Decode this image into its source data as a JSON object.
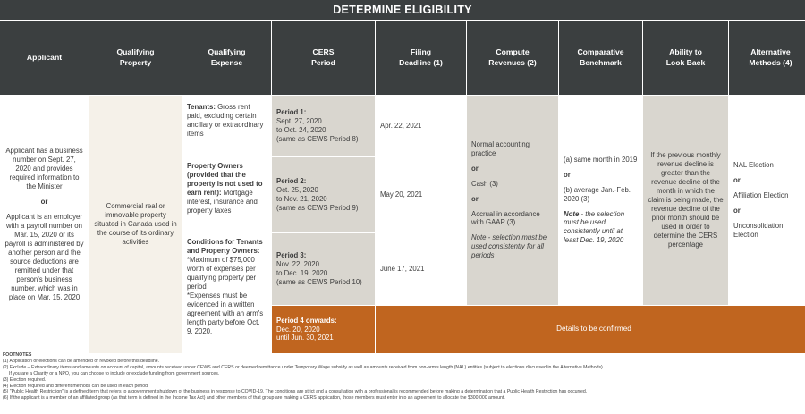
{
  "title": "DETERMINE ELIGIBILITY",
  "headers": {
    "applicant": "Applicant",
    "property": "Qualifying\nProperty",
    "expense": "Qualifying\nExpense",
    "cers_period": "CERS\nPeriod",
    "filing_deadline": "Filing\nDeadline (1)",
    "compute_revenues": "Compute\nRevenues (2)",
    "benchmark": "Comparative\nBenchmark",
    "look_back": "Ability to\nLook Back",
    "alt_methods": "Alternative\nMethods (4)"
  },
  "applicant": {
    "para1": "Applicant has a business number on Sept. 27, 2020 and provides required information to the Minister",
    "or": "or",
    "para2": "Applicant is an employer with a payroll number on Mar. 15, 2020 or its payroll is administered by another person and the source deductions are remitted under that person's business number, which was in place on Mar. 15, 2020"
  },
  "property": {
    "text": "Commercial real or immovable property situated in Canada used in the course of its ordinary activities"
  },
  "expense": {
    "tenants_label": "Tenants:",
    "tenants_text": " Gross rent paid, excluding certain ancillary or extraordinary items",
    "owners_label": "Property Owners (provided that the property is not used to earn rent):",
    "owners_text": " Mortgage interest, insurance and property taxes",
    "conditions_label": "Conditions for Tenants and Property Owners:",
    "conditions_text1": "*Maximum of $75,000 worth of expenses per qualifying property per period",
    "conditions_text2": "*Expenses must be evidenced in a written agreement with an arm's length party before Oct. 9, 2020."
  },
  "periods": [
    {
      "label": "Period 1:",
      "dates": "Sept. 27, 2020\nto Oct. 24, 2020\n(same as CEWS Period 8)",
      "deadline": "Apr. 22, 2021"
    },
    {
      "label": "Period 2:",
      "dates": "Oct. 25, 2020\nto Nov. 21, 2020\n(same as CEWS Period 9)",
      "deadline": "May 20, 2021"
    },
    {
      "label": "Period 3:",
      "dates": "Nov. 22, 2020\nto Dec. 19, 2020\n(same as CEWS Period 10)",
      "deadline": "June 17, 2021"
    },
    {
      "label": "Period 4 onwards:",
      "dates": "Dec. 20, 2020\nuntil Jun. 30, 2021"
    }
  ],
  "details_tbc": "Details to be confirmed",
  "revenues": {
    "opt1": "Normal accounting practice",
    "or": "or",
    "opt2": "Cash (3)",
    "opt3": "Accrual in accordance with GAAP (3)",
    "note": "Note - selection must be used consistently for all periods"
  },
  "benchmark": {
    "opt1": "(a) same month in 2019",
    "or": "or",
    "opt2": "(b) average Jan.-Feb. 2020 (3)",
    "note_label": "Note",
    "note_text": " - the selection must be used consistently until at least Dec. 19, 2020"
  },
  "look_back": {
    "text": "If the previous monthly revenue decline is greater than the revenue decline of the month in which the claim is being made, the revenue decline of the prior month should be used in order to determine the CERS percentage"
  },
  "alt_methods": {
    "opt1": "NAL Election",
    "or": "or",
    "opt2": "Affiliation Election",
    "opt3": "Unconsolidation Election"
  },
  "footnotes": {
    "title": "FOOTNOTES",
    "lines": [
      "(1) Application or elections can be amended or revoked before this deadline.",
      "(2) Exclude – Extraordinary items and amounts on account of capital, amounts received under CEWS and CERS or deemed remittance under Temporary Wage subsidy as well as amounts received from non-arm's length (NAL) entities (subject to elections discussed in the Alternative Methods).",
      "If you are a Charity or a NPO, you can choose to include or exclude funding from government sources.",
      "(3) Election required.",
      "(4) Election required and different methods can be used in each period.",
      "(5) \"Public Health Restriction\" is a defined term that refers to a government shutdown of the business in response to COVID-19. The conditions are strict and a consultation with a professional is recommended before making a determination that a Public Health Restriction has occurred.",
      "(6) If the applicant is a member of an affiliated group (as that term is defined in the Income Tax Act) and other members of that group are making a CERS application, those members must enter into an agreement to allocate the $300,000 amount."
    ]
  },
  "colors": {
    "header_bg": "#3b3f40",
    "accent_orange": "#c0651f",
    "cream": "#f5f1e9",
    "gray": "#d9d6cf"
  }
}
